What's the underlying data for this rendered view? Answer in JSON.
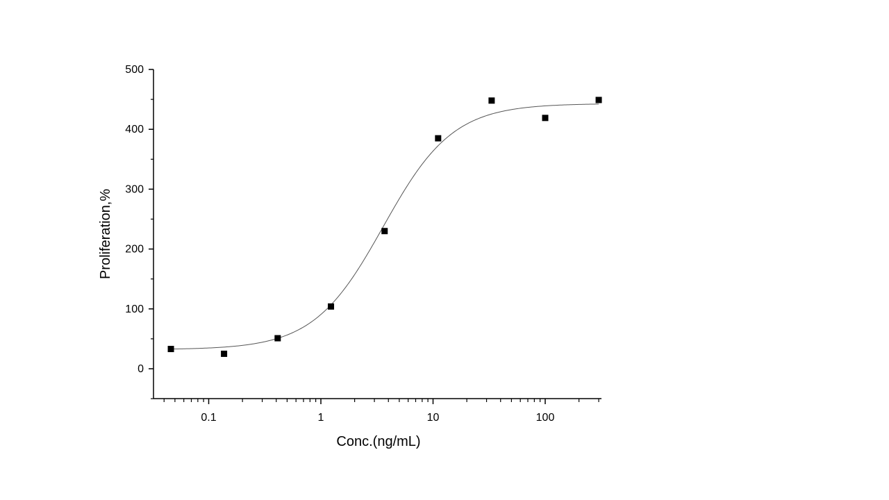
{
  "chart_data": {
    "type": "scatter",
    "title": "",
    "xlabel": "Conc.(ng/mL)",
    "ylabel": "Proliferation,%",
    "x_scale": "log",
    "xlim": [
      0.03,
      300
    ],
    "ylim": [
      -50,
      500
    ],
    "x_ticks": [
      0.1,
      1,
      10,
      100
    ],
    "x_tick_labels": [
      "0.1",
      "1",
      "10",
      "100"
    ],
    "y_ticks": [
      0,
      100,
      200,
      300,
      400,
      500
    ],
    "y_tick_labels": [
      "0",
      "100",
      "200",
      "300",
      "400",
      "500"
    ],
    "grid": false,
    "legend": "none",
    "colors": {
      "points": "#000000",
      "curve": "#555555",
      "axis": "#000000"
    },
    "points": [
      {
        "x": 0.046,
        "y": 33
      },
      {
        "x": 0.137,
        "y": 25
      },
      {
        "x": 0.412,
        "y": 51
      },
      {
        "x": 1.23,
        "y": 104
      },
      {
        "x": 3.7,
        "y": 230
      },
      {
        "x": 11.1,
        "y": 385
      },
      {
        "x": 33.3,
        "y": 448
      },
      {
        "x": 100,
        "y": 419
      },
      {
        "x": 300,
        "y": 449
      }
    ],
    "fit_curve": {
      "model": "logistic-4pl",
      "bottom": 32,
      "top": 443,
      "ec50": 3.6,
      "hill": 1.4
    }
  }
}
